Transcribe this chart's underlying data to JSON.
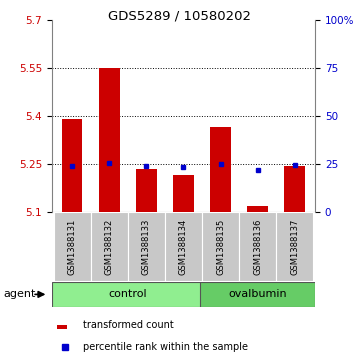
{
  "title": "GDS5289 / 10580202",
  "samples": [
    "GSM1388131",
    "GSM1388132",
    "GSM1388133",
    "GSM1388134",
    "GSM1388135",
    "GSM1388136",
    "GSM1388137"
  ],
  "red_tops": [
    5.39,
    5.55,
    5.235,
    5.215,
    5.365,
    5.12,
    5.245
  ],
  "blue_vals": [
    5.245,
    5.253,
    5.245,
    5.243,
    5.251,
    5.232,
    5.248
  ],
  "baseline": 5.1,
  "ylim_left": [
    5.1,
    5.7
  ],
  "ylim_right": [
    0,
    100
  ],
  "yticks_left": [
    5.1,
    5.25,
    5.4,
    5.55,
    5.7
  ],
  "ytick_labels_left": [
    "5.1",
    "5.25",
    "5.4",
    "5.55",
    "5.7"
  ],
  "yticks_right": [
    0,
    25,
    50,
    75,
    100
  ],
  "ytick_labels_right": [
    "0",
    "25",
    "50",
    "75",
    "100%"
  ],
  "grid_vals": [
    5.25,
    5.4,
    5.55
  ],
  "bar_color": "#CC0000",
  "dot_color": "#0000CC",
  "label_color_left": "#CC0000",
  "label_color_right": "#0000CC",
  "bar_width": 0.55,
  "tick_bg": "#C8C8C8",
  "control_color": "#90EE90",
  "ovalbumin_color": "#66CC66",
  "legend_red_label": "transformed count",
  "legend_blue_label": "percentile rank within the sample",
  "agent_label": "agent"
}
